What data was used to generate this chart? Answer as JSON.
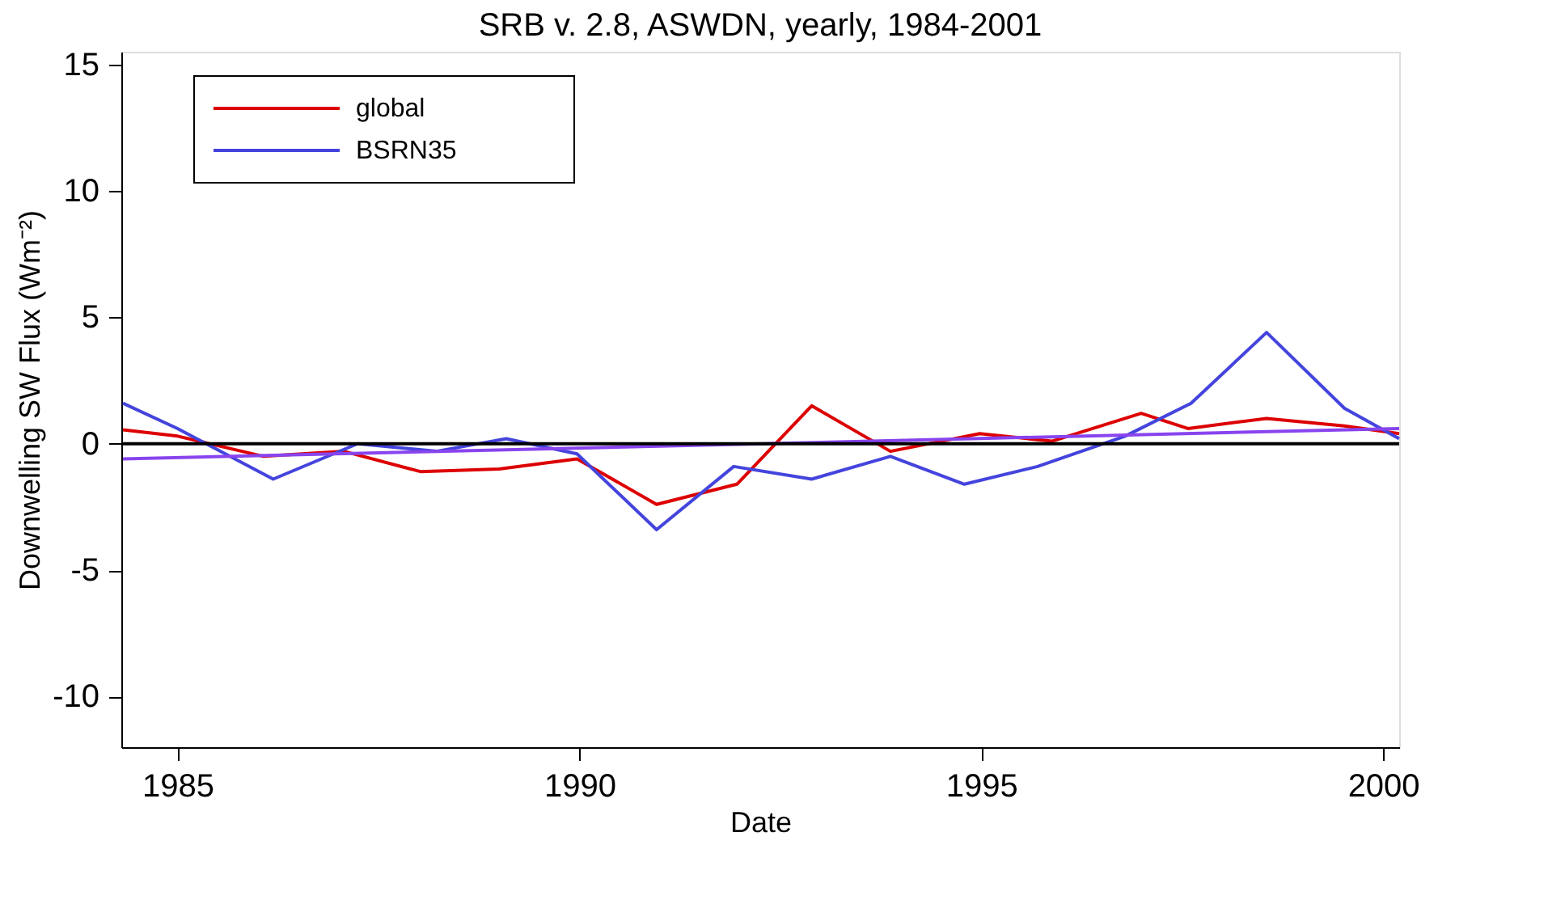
{
  "chart_data": {
    "type": "line",
    "title": "SRB v. 2.8, ASWDN, yearly, 1984-2001",
    "xlabel": "Date",
    "ylabel": "Downwelling SW Flux (Wm⁻²)",
    "xlim": [
      1984.3,
      2000.2
    ],
    "xticks": [
      1985,
      1990,
      1995,
      2000
    ],
    "ylim": [
      -12,
      15.5
    ],
    "yticks": [
      -10,
      -5,
      0,
      5,
      10,
      15
    ],
    "grid": false,
    "legend": "top left",
    "ref_lines": [
      {
        "axis": "y",
        "value": 0,
        "color": "#000000"
      }
    ],
    "series": [
      {
        "name": "global",
        "color": "#dd0000",
        "x": [
          1984.32,
          1985.0,
          1986.07,
          1987.07,
          1988.02,
          1989.0,
          1989.97,
          1990.96,
          1991.96,
          1992.89,
          1993.87,
          1994.98,
          1995.88,
          1996.99,
          1997.57,
          1998.55,
          1999.52,
          2000.2
        ],
        "values": [
          0.55,
          0.3,
          -0.5,
          -0.3,
          -1.1,
          -1.0,
          -0.6,
          -2.4,
          -1.6,
          1.5,
          -0.3,
          0.4,
          0.1,
          1.2,
          0.6,
          1.0,
          0.7,
          0.4
        ]
      },
      {
        "name": "BSRN35",
        "color": "#4444dd",
        "x": [
          1984.32,
          1985.0,
          1986.19,
          1987.24,
          1988.22,
          1989.09,
          1989.97,
          1990.96,
          1991.92,
          1992.89,
          1993.87,
          1994.79,
          1995.7,
          1996.79,
          1997.61,
          1998.55,
          1999.52,
          2000.2
        ],
        "values": [
          1.6,
          0.6,
          -1.4,
          0.0,
          -0.3,
          0.2,
          -0.4,
          -3.4,
          -0.9,
          -1.4,
          -0.5,
          -1.6,
          -0.9,
          0.3,
          1.6,
          4.4,
          1.4,
          0.2
        ]
      },
      {
        "color": "#8844ee",
        "x": [
          1984.32,
          2000.2
        ],
        "values": [
          -0.6,
          0.6
        ]
      }
    ]
  }
}
